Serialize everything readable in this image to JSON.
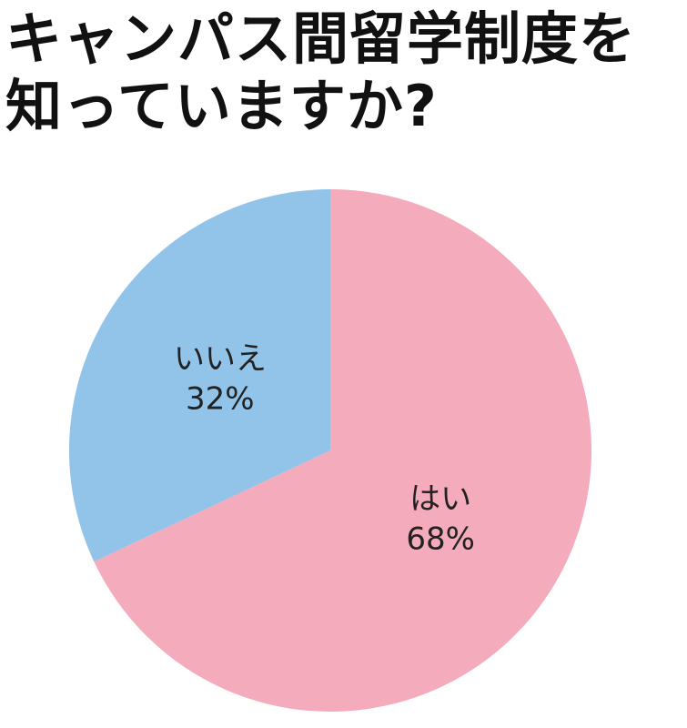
{
  "chart_data": {
    "type": "pie",
    "title": "キャンパス間留学制度を知っていますか?",
    "categories": [
      "はい",
      "いいえ"
    ],
    "values": [
      68,
      32
    ],
    "value_labels": [
      "68%",
      "32%"
    ],
    "colors": [
      "#f4abbb",
      "#92c4ea"
    ]
  }
}
